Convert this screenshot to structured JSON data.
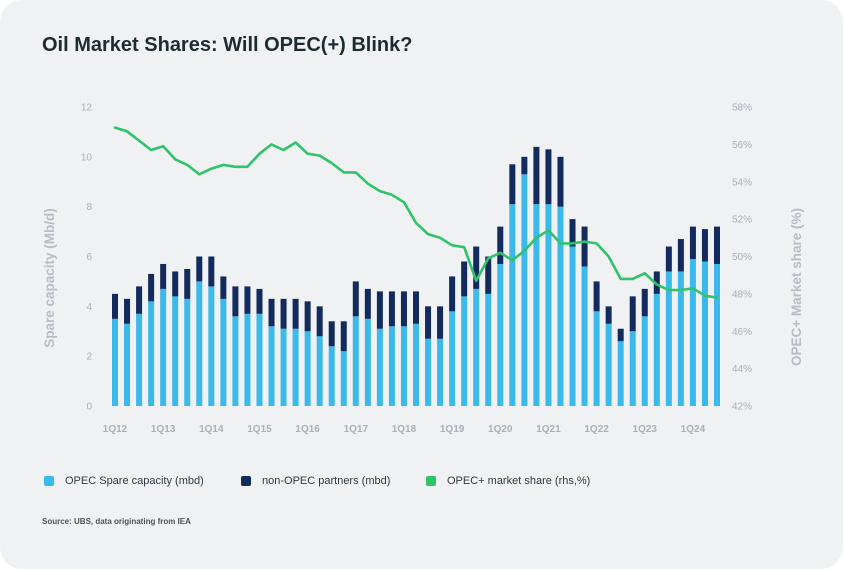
{
  "title": "Oil Market Shares:  Will OPEC(+) Blink?",
  "source": "Source: UBS, data originating from IEA",
  "colors": {
    "opec": "#3bb9eb",
    "non_opec": "#132a5c",
    "share": "#2fc36a",
    "background": "#eff1f3"
  },
  "legend": [
    {
      "label": "OPEC Spare capacity (mbd)",
      "color": "#3bb9eb",
      "icon": "square-swatch"
    },
    {
      "label": "non-OPEC partners (mbd)",
      "color": "#132a5c",
      "icon": "square-swatch"
    },
    {
      "label": "OPEC+ market share (rhs,%)",
      "color": "#2fc36a",
      "icon": "square-swatch"
    }
  ],
  "chart_data": {
    "type": "bar",
    "stacked": true,
    "title": "Oil Market Shares:  Will OPEC(+) Blink?",
    "xlabel": "",
    "ylabel": "Spare capacity (Mb/d)",
    "y2label": "OPEC+ Market share (%)",
    "ylim": [
      0,
      12
    ],
    "y2lim": [
      42,
      58
    ],
    "yticks": [
      "0",
      "2",
      "4",
      "6",
      "8",
      "10",
      "12"
    ],
    "y2ticks": [
      "42%",
      "44%",
      "46%",
      "48%",
      "50%",
      "52%",
      "54%",
      "56%",
      "58%"
    ],
    "xticks": [
      {
        "label": "1Q12",
        "index": 0
      },
      {
        "label": "1Q13",
        "index": 4
      },
      {
        "label": "1Q14",
        "index": 8
      },
      {
        "label": "1Q15",
        "index": 12
      },
      {
        "label": "1Q16",
        "index": 16
      },
      {
        "label": "1Q17",
        "index": 20
      },
      {
        "label": "1Q18",
        "index": 24
      },
      {
        "label": "1Q19",
        "index": 28
      },
      {
        "label": "1Q20",
        "index": 32
      },
      {
        "label": "1Q21",
        "index": 36
      },
      {
        "label": "1Q22",
        "index": 40
      },
      {
        "label": "1Q23",
        "index": 44
      },
      {
        "label": "1Q24",
        "index": 48
      }
    ],
    "categories": [
      "1Q12",
      "2Q12",
      "3Q12",
      "4Q12",
      "1Q13",
      "2Q13",
      "3Q13",
      "4Q13",
      "1Q14",
      "2Q14",
      "3Q14",
      "4Q14",
      "1Q15",
      "2Q15",
      "3Q15",
      "4Q15",
      "1Q16",
      "2Q16",
      "3Q16",
      "4Q16",
      "1Q17",
      "2Q17",
      "3Q17",
      "4Q17",
      "1Q18",
      "2Q18",
      "3Q18",
      "4Q18",
      "1Q19",
      "2Q19",
      "3Q19",
      "4Q19",
      "1Q20",
      "2Q20",
      "3Q20",
      "4Q20",
      "1Q21",
      "2Q21",
      "3Q21",
      "4Q21",
      "1Q22",
      "2Q22",
      "3Q22",
      "4Q22",
      "1Q23",
      "2Q23",
      "3Q23",
      "4Q23",
      "1Q24",
      "2Q24",
      "3Q24"
    ],
    "series": [
      {
        "name": "OPEC Spare capacity (mbd)",
        "type": "bar",
        "axis": "left",
        "values": [
          3.5,
          3.3,
          3.7,
          4.2,
          4.7,
          4.4,
          4.3,
          5.0,
          4.8,
          4.3,
          3.6,
          3.7,
          3.7,
          3.2,
          3.1,
          3.1,
          3.0,
          2.8,
          2.4,
          2.2,
          3.6,
          3.5,
          3.1,
          3.2,
          3.2,
          3.3,
          2.7,
          2.7,
          3.8,
          4.4,
          4.7,
          4.5,
          5.7,
          8.1,
          9.3,
          8.1,
          8.1,
          8.0,
          6.4,
          5.6,
          3.8,
          3.3,
          2.6,
          3.0,
          3.6,
          4.5,
          5.4,
          5.4,
          5.9,
          5.8,
          5.7
        ]
      },
      {
        "name": "non-OPEC partners (mbd)",
        "type": "bar",
        "axis": "left",
        "values": [
          1.0,
          1.0,
          1.1,
          1.1,
          1.0,
          1.0,
          1.2,
          1.0,
          1.2,
          0.9,
          1.2,
          1.1,
          1.0,
          1.1,
          1.2,
          1.2,
          1.2,
          1.2,
          1.0,
          1.2,
          1.4,
          1.2,
          1.5,
          1.4,
          1.4,
          1.3,
          1.3,
          1.3,
          1.4,
          1.4,
          1.7,
          1.5,
          1.5,
          1.6,
          0.7,
          2.3,
          2.2,
          2.0,
          1.1,
          1.6,
          1.2,
          0.7,
          0.5,
          1.4,
          1.1,
          0.9,
          1.0,
          1.3,
          1.3,
          1.3,
          1.5
        ]
      },
      {
        "name": "OPEC+ market share (rhs,%)",
        "type": "line",
        "axis": "right",
        "values": [
          56.9,
          56.7,
          56.2,
          55.7,
          55.9,
          55.2,
          54.9,
          54.4,
          54.7,
          54.9,
          54.8,
          54.8,
          55.5,
          56.0,
          55.7,
          56.1,
          55.5,
          55.4,
          55.0,
          54.5,
          54.5,
          53.9,
          53.5,
          53.3,
          52.9,
          51.8,
          51.2,
          51.0,
          50.6,
          50.5,
          48.7,
          49.9,
          50.2,
          49.8,
          50.3,
          51.0,
          51.4,
          50.7,
          50.7,
          50.8,
          50.7,
          50.0,
          48.8,
          48.8,
          49.1,
          48.5,
          48.2,
          48.2,
          48.3,
          47.9,
          47.8
        ]
      }
    ]
  }
}
